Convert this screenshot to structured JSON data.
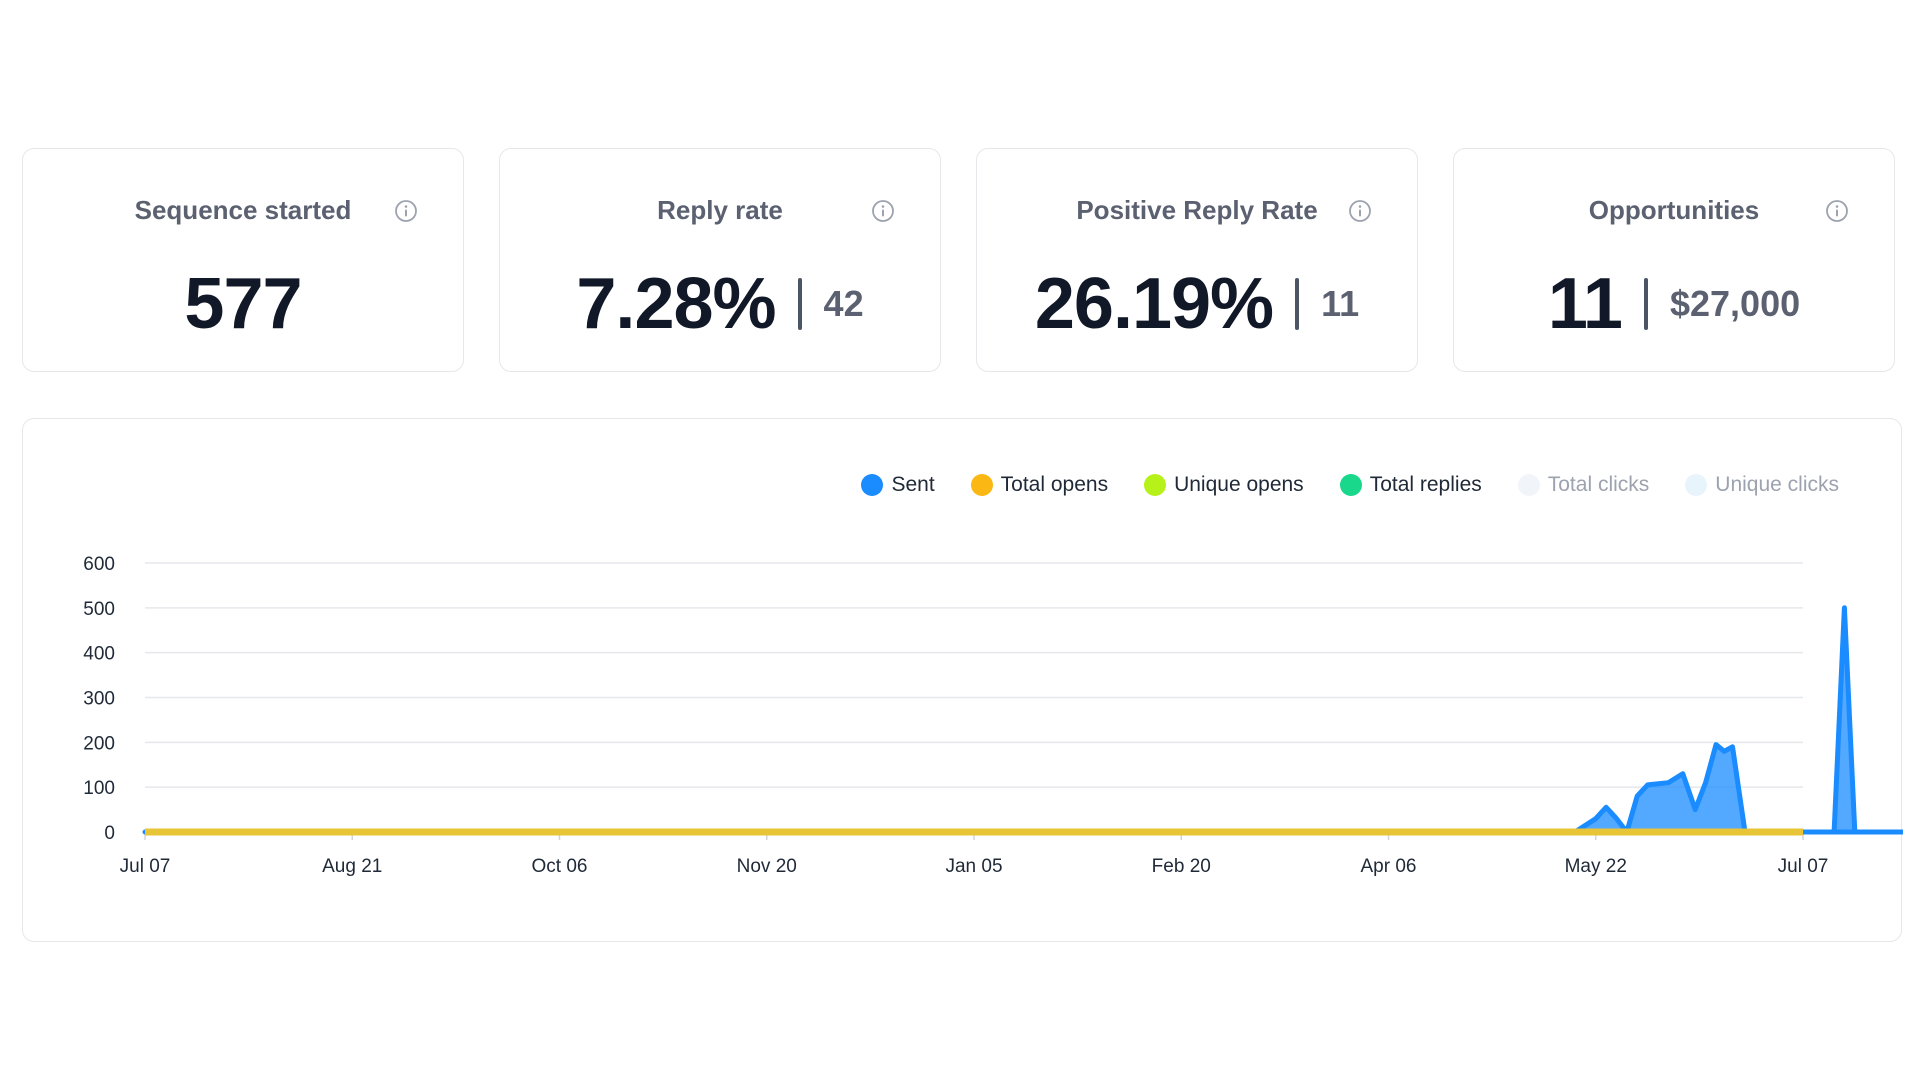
{
  "cards": [
    {
      "title": "Sequence started",
      "value": "577",
      "secondary": ""
    },
    {
      "title": "Reply rate",
      "value": "7.28%",
      "secondary": "42"
    },
    {
      "title": "Positive Reply Rate",
      "value": "26.19%",
      "secondary": "11"
    },
    {
      "title": "Opportunities",
      "value": "11",
      "secondary": "$27,000"
    }
  ],
  "chart_data": {
    "type": "area",
    "legend_position": "top-right",
    "grid": true,
    "ylim": [
      0,
      600
    ],
    "yticks": [
      "0",
      "100",
      "200",
      "300",
      "400",
      "500",
      "600"
    ],
    "xticks": [
      "Jul 07",
      "Aug 21",
      "Oct 06",
      "Nov 20",
      "Jan 05",
      "Feb 20",
      "Apr 06",
      "May 22",
      "Jul 07"
    ],
    "series": [
      {
        "name": "Sent",
        "color": "#1a8cff",
        "points": [
          [
            0,
            0
          ],
          [
            6.9,
            0
          ],
          [
            7.0,
            30
          ],
          [
            7.05,
            55
          ],
          [
            7.1,
            30
          ],
          [
            7.15,
            0
          ],
          [
            7.2,
            80
          ],
          [
            7.25,
            105
          ],
          [
            7.35,
            110
          ],
          [
            7.42,
            130
          ],
          [
            7.48,
            50
          ],
          [
            7.53,
            110
          ],
          [
            7.58,
            195
          ],
          [
            7.62,
            180
          ],
          [
            7.66,
            190
          ],
          [
            7.72,
            0
          ],
          [
            8.15,
            0
          ],
          [
            8.2,
            500
          ],
          [
            8.25,
            0
          ],
          [
            9.0,
            0
          ]
        ]
      },
      {
        "name": "Total opens",
        "color": "#fbb814",
        "points": [
          [
            0,
            0
          ],
          [
            9.0,
            0
          ]
        ]
      },
      {
        "name": "Unique opens",
        "color": "#b6f21a",
        "points": [
          [
            0,
            0
          ],
          [
            9.0,
            0
          ]
        ]
      },
      {
        "name": "Total replies",
        "color": "#19d88c",
        "points": [
          [
            0,
            0
          ],
          [
            9.0,
            0
          ]
        ]
      },
      {
        "name": "Total clicks",
        "color": "#f1f5f9",
        "hidden": true,
        "points": []
      },
      {
        "name": "Unique clicks",
        "color": "#e8f4fb",
        "hidden": true,
        "points": []
      }
    ]
  }
}
